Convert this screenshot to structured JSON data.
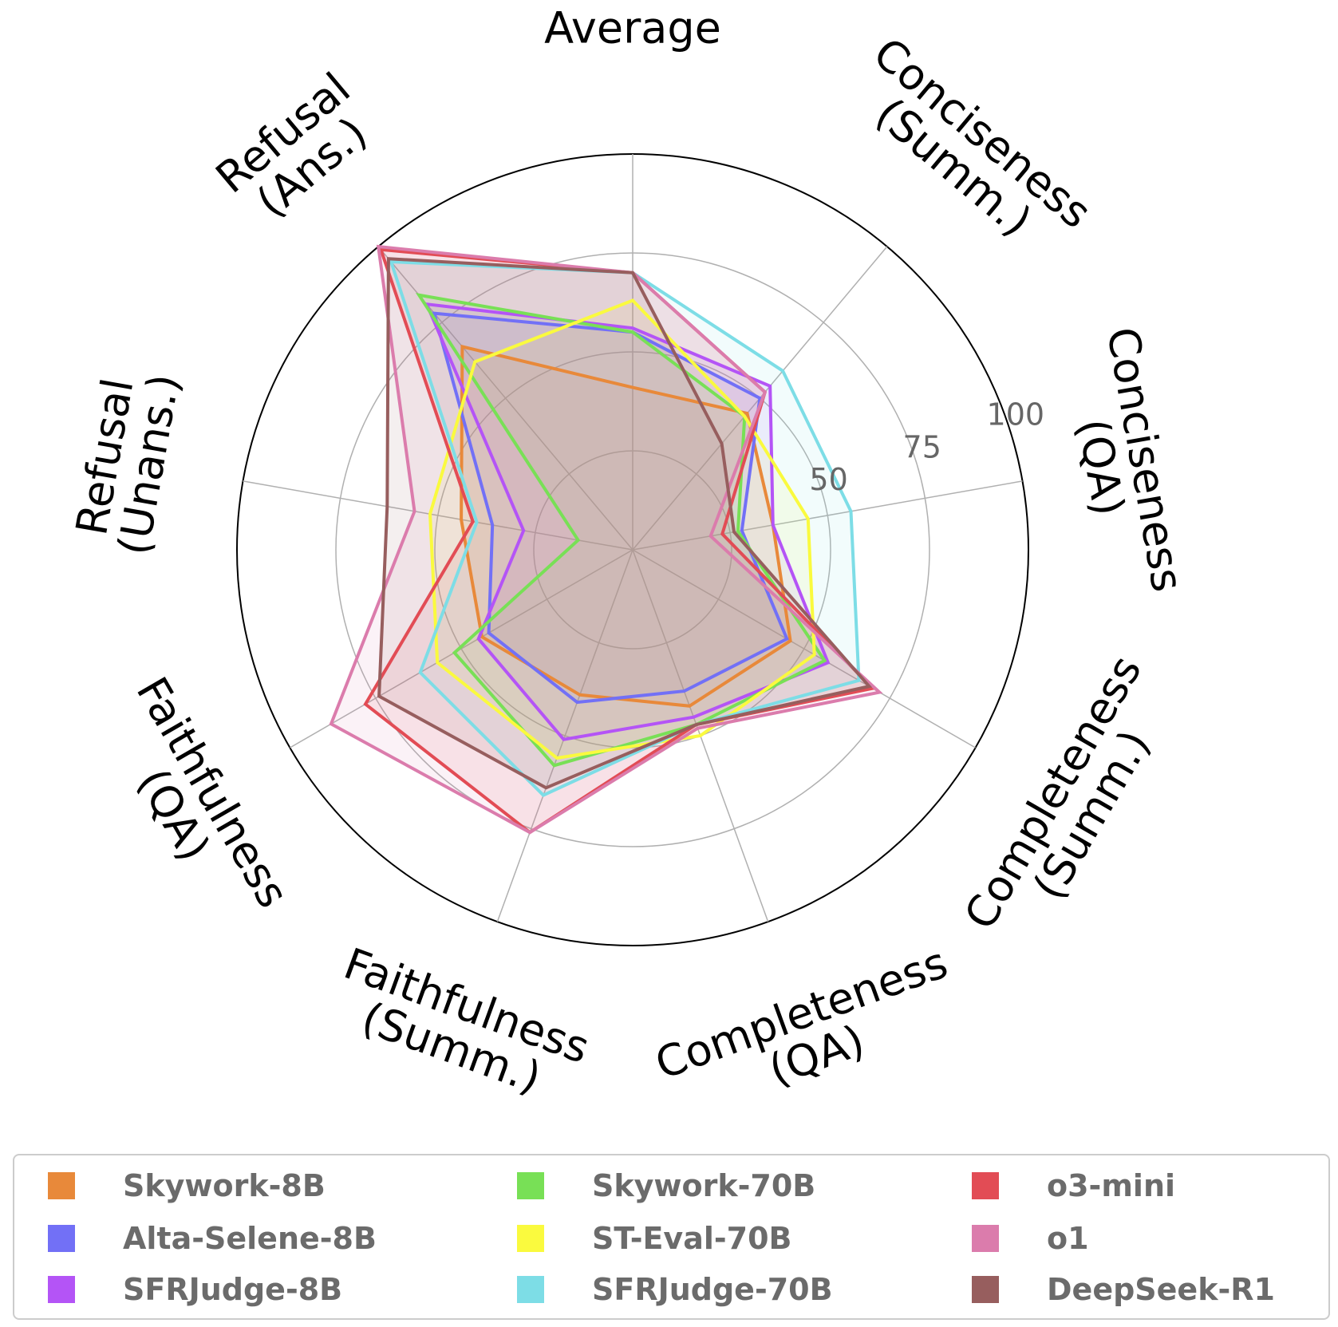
{
  "chart_data": {
    "type": "radar",
    "axes": [
      "Average",
      "Conciseness\n(Summ.)",
      "Conciseness\n(QA)",
      "Completeness\n(Summ.)",
      "Completeness\n(QA)",
      "Faithfulness\n(Summ.)",
      "Faithfulness\n(QA)",
      "Refusal\n(Unans.)",
      "Refusal\n(Ans.)"
    ],
    "rlim": [
      0,
      100
    ],
    "rticks": [
      25,
      50,
      75,
      100
    ],
    "rtick_labels": [
      "",
      "50",
      "75",
      "100"
    ],
    "grid": true,
    "legend_position": "bottom",
    "series": [
      {
        "name": "Skywork-8B",
        "color": "#e8893a",
        "values": [
          41,
          45,
          36,
          46,
          42,
          39,
          44,
          44,
          67
        ]
      },
      {
        "name": "Alta-Selene-8B",
        "color": "#7270f6",
        "values": [
          55,
          50,
          28,
          45,
          38,
          41,
          42,
          36,
          78
        ]
      },
      {
        "name": "SFRJudge-8B",
        "color": "#b454f6",
        "values": [
          56,
          54,
          36,
          57,
          45,
          51,
          45,
          28,
          81
        ]
      },
      {
        "name": "Skywork-70B",
        "color": "#78e056",
        "values": [
          55,
          44,
          27,
          56,
          47,
          58,
          52,
          14,
          84
        ]
      },
      {
        "name": "ST-Eval-70B",
        "color": "#fafa3e",
        "values": [
          63,
          44,
          45,
          53,
          50,
          56,
          57,
          52,
          62
        ]
      },
      {
        "name": "SFRJudge-70B",
        "color": "#7ddde6",
        "values": [
          70,
          59,
          56,
          66,
          47,
          66,
          62,
          40,
          95
        ]
      },
      {
        "name": "o3-mini",
        "color": "#e24c55",
        "values": [
          70,
          52,
          23,
          70,
          47,
          76,
          78,
          41,
          99
        ]
      },
      {
        "name": "o1",
        "color": "#db7cac",
        "values": [
          70,
          52,
          20,
          72,
          48,
          76,
          88,
          56,
          100
        ]
      },
      {
        "name": "DeepSeek-R1",
        "color": "#975e5e",
        "values": [
          70,
          35,
          26,
          69,
          47,
          64,
          74,
          63,
          96
        ]
      }
    ]
  }
}
